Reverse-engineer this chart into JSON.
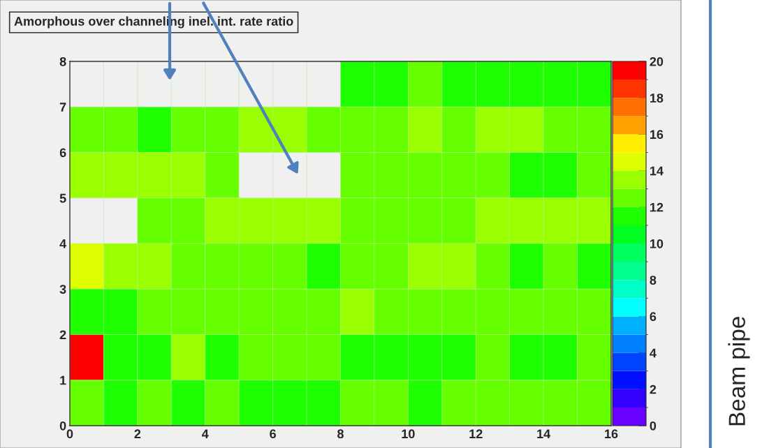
{
  "chart_data": {
    "type": "heatmap",
    "title": "Amorphous over channeling inel. int. rate ratio",
    "annotations": [
      "Beam pipe"
    ],
    "xlim": [
      0,
      16
    ],
    "ylim": [
      0,
      8
    ],
    "xticks": [
      0,
      2,
      4,
      6,
      8,
      10,
      12,
      14,
      16
    ],
    "yticks": [
      0,
      1,
      2,
      3,
      4,
      5,
      6,
      7,
      8
    ],
    "clim": [
      0,
      20
    ],
    "cticks": [
      0,
      2,
      4,
      6,
      8,
      10,
      12,
      14,
      16,
      18,
      20
    ],
    "colors": [
      "#6a00ff",
      "#3300ff",
      "#0010ff",
      "#0044ff",
      "#0080ff",
      "#00b0ff",
      "#00ffff",
      "#00ffc8",
      "#00ff90",
      "#00ff60",
      "#00ff20",
      "#1eff00",
      "#66ff00",
      "#9aff00",
      "#ddff00",
      "#ffee00",
      "#ffa000",
      "#ff7000",
      "#ff3300",
      "#ff0000"
    ],
    "cells": [
      [
        null,
        null,
        null,
        null,
        null,
        null,
        null,
        null,
        11.5,
        11.5,
        12.5,
        11.5,
        11.5,
        11.5,
        11.5,
        11.5
      ],
      [
        12.5,
        12.5,
        11.5,
        12.5,
        12.5,
        13.5,
        13.5,
        12.5,
        12.5,
        12.5,
        13.5,
        12.5,
        13.5,
        13.5,
        12.5,
        12.5
      ],
      [
        13.5,
        13.5,
        13.5,
        13.5,
        12.5,
        null,
        null,
        null,
        12.5,
        12.5,
        12.5,
        12.5,
        12.5,
        11.5,
        11.5,
        12.5
      ],
      [
        null,
        null,
        12.5,
        12.5,
        13.5,
        13.5,
        13.5,
        13.5,
        12.5,
        12.5,
        12.5,
        12.5,
        13.5,
        13.5,
        13.5,
        13.5
      ],
      [
        14.5,
        13.5,
        13.5,
        12.5,
        12.5,
        12.5,
        12.5,
        11.5,
        12.5,
        12.5,
        13.5,
        13.5,
        12.5,
        11.5,
        12.5,
        11.5
      ],
      [
        11.5,
        11.5,
        12.5,
        12.5,
        12.5,
        12.5,
        12.5,
        12.5,
        13.5,
        12.5,
        12.5,
        12.5,
        12.5,
        12.5,
        12.5,
        12.5
      ],
      [
        19.5,
        11.5,
        11.5,
        13.5,
        11.5,
        12.5,
        12.5,
        12.5,
        11.5,
        11.5,
        11.5,
        11.5,
        12.5,
        11.5,
        11.5,
        12.5
      ],
      [
        12.5,
        11.5,
        12.5,
        11.5,
        12.5,
        11.5,
        11.5,
        11.5,
        12.5,
        12.5,
        11.5,
        12.5,
        12.5,
        12.5,
        12.5,
        12.5
      ]
    ]
  }
}
